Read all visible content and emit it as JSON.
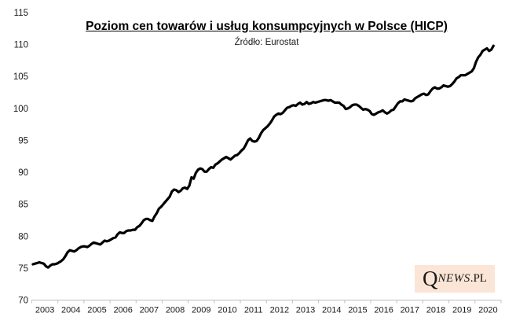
{
  "header": {
    "title": "Poziom cen towarów i usług konsumpcyjnych w Polsce (HICP)",
    "subtitle": "Źródło: Eurostat"
  },
  "logo": {
    "q": "Q",
    "news": "NEWS",
    "pl": ".PL",
    "bg_color": "#fbe5d6",
    "text_color": "#1a1a1a"
  },
  "chart_data": {
    "type": "line",
    "title": "Poziom cen towarów i usług konsumpcyjnych w Polsce (HICP)",
    "subtitle": "Źródło: Eurostat",
    "frequency": "monthly",
    "x_start": "2003-01",
    "x_end": "2020-09",
    "x_tick_labels": [
      "2003",
      "2004",
      "2005",
      "2006",
      "2007",
      "2008",
      "2009",
      "2010",
      "2011",
      "2012",
      "2013",
      "2014",
      "2015",
      "2016",
      "2017",
      "2018",
      "2019",
      "2020"
    ],
    "y_ticks": [
      70,
      75,
      80,
      85,
      90,
      95,
      100,
      105,
      110,
      115
    ],
    "ylim": [
      70,
      115
    ],
    "grid": false,
    "legend": false,
    "line_color": "#000000",
    "line_width": 3.2,
    "axis_color": "#bfbfbf",
    "tick_label_color": "#1a1a1a",
    "series": [
      {
        "name": "HICP",
        "values": [
          75.6,
          75.7,
          75.8,
          75.9,
          75.8,
          75.7,
          75.3,
          75.1,
          75.4,
          75.6,
          75.6,
          75.7,
          75.9,
          76.1,
          76.4,
          76.9,
          77.5,
          77.8,
          77.7,
          77.6,
          77.8,
          78.1,
          78.3,
          78.4,
          78.4,
          78.3,
          78.5,
          78.8,
          79.0,
          78.9,
          78.8,
          78.7,
          79.0,
          79.3,
          79.2,
          79.3,
          79.5,
          79.7,
          79.8,
          80.3,
          80.6,
          80.5,
          80.5,
          80.8,
          80.9,
          80.9,
          81.0,
          81.0,
          81.4,
          81.6,
          82.0,
          82.5,
          82.7,
          82.7,
          82.5,
          82.4,
          83.1,
          83.6,
          84.3,
          84.6,
          85.0,
          85.4,
          85.8,
          86.2,
          87.0,
          87.3,
          87.2,
          86.9,
          87.1,
          87.5,
          87.6,
          87.4,
          87.9,
          89.2,
          89.0,
          89.9,
          90.4,
          90.6,
          90.5,
          90.1,
          90.1,
          90.5,
          90.8,
          90.7,
          91.2,
          91.4,
          91.7,
          92.0,
          92.2,
          92.4,
          92.2,
          92.0,
          92.3,
          92.6,
          92.7,
          93.0,
          93.4,
          93.7,
          94.3,
          95.0,
          95.3,
          94.9,
          94.8,
          94.9,
          95.4,
          96.1,
          96.6,
          96.9,
          97.2,
          97.6,
          98.1,
          98.7,
          99.0,
          99.2,
          99.1,
          99.3,
          99.7,
          100.1,
          100.2,
          100.4,
          100.5,
          100.4,
          100.7,
          100.9,
          100.6,
          100.7,
          101.0,
          100.7,
          100.8,
          101.0,
          100.9,
          101.0,
          101.1,
          101.2,
          101.3,
          101.3,
          101.2,
          101.3,
          101.1,
          100.9,
          100.9,
          100.9,
          100.6,
          100.4,
          99.9,
          100.0,
          100.2,
          100.5,
          100.6,
          100.6,
          100.4,
          100.1,
          99.8,
          99.9,
          99.8,
          99.6,
          99.1,
          99.0,
          99.2,
          99.4,
          99.5,
          99.7,
          99.4,
          99.2,
          99.4,
          99.7,
          99.8,
          100.3,
          100.8,
          101.1,
          101.1,
          101.4,
          101.3,
          101.2,
          101.1,
          101.2,
          101.6,
          101.8,
          102.0,
          102.2,
          102.3,
          102.1,
          102.2,
          102.7,
          103.1,
          103.3,
          103.1,
          103.1,
          103.3,
          103.6,
          103.5,
          103.4,
          103.5,
          103.8,
          104.2,
          104.7,
          104.9,
          105.2,
          105.2,
          105.2,
          105.4,
          105.6,
          105.8,
          106.3,
          107.3,
          108.0,
          108.4,
          109.0,
          109.2,
          109.4,
          109.0,
          109.2,
          109.8
        ]
      }
    ]
  }
}
